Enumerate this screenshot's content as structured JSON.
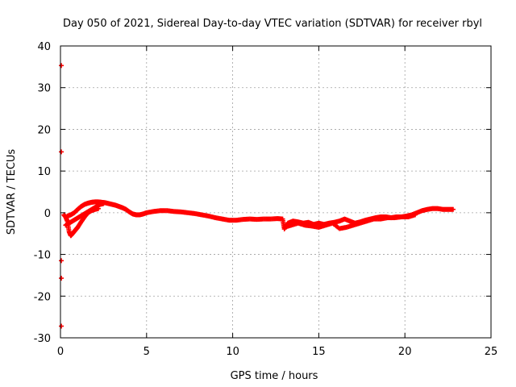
{
  "chart_data": {
    "type": "scatter",
    "title": "Day 050 of 2021, Sidereal Day-to-day VTEC variation (SDTVAR) for receiver rbyl",
    "xlabel": "GPS time / hours",
    "ylabel": "SDTVAR / TECUs",
    "xlim": [
      0,
      25
    ],
    "ylim": [
      -30,
      40
    ],
    "x_ticks": [
      0,
      5,
      10,
      15,
      20,
      25
    ],
    "y_ticks": [
      -30,
      -20,
      -10,
      0,
      10,
      20,
      30,
      40
    ],
    "x_tick_labels": [
      "0",
      "5",
      "10",
      "15",
      "20",
      "25"
    ],
    "y_tick_labels": [
      "-30",
      "-20",
      "-10",
      "0",
      "10",
      "20",
      "30",
      "40"
    ],
    "grid": true,
    "marker": "plus",
    "color": "#ff0000",
    "series": [
      {
        "name": "rbyl",
        "x": [
          0.05,
          0.05,
          0.05,
          0.05,
          0.05,
          0.2,
          0.3,
          0.4,
          0.5,
          0.6,
          0.7,
          0.8,
          0.9,
          1.0,
          1.2,
          1.4,
          1.6,
          1.8,
          2.0,
          2.2,
          0.3,
          0.5,
          0.7,
          0.9,
          1.1,
          1.3,
          1.5,
          1.7,
          1.9,
          2.1,
          2.3,
          2.5,
          0.4,
          0.6,
          0.8,
          1.0,
          1.2,
          1.4,
          1.6,
          1.8,
          2.0,
          2.2,
          2.4,
          2.6,
          2.8,
          3.0,
          3.2,
          3.4,
          3.6,
          3.8,
          4.0,
          4.2,
          4.4,
          4.6,
          4.8,
          5.0,
          5.4,
          5.8,
          6.2,
          6.6,
          7.0,
          7.4,
          7.8,
          8.2,
          8.6,
          9.0,
          9.4,
          9.8,
          10.2,
          10.6,
          11.0,
          11.4,
          11.8,
          12.2,
          12.6,
          12.9,
          13.0,
          13.2,
          13.5,
          13.8,
          14.1,
          14.4,
          14.7,
          15.0,
          15.3,
          15.6,
          15.9,
          16.2,
          16.5,
          16.8,
          17.1,
          17.4,
          17.7,
          18.0,
          18.3,
          18.6,
          18.9,
          19.2,
          19.5,
          19.8,
          20.1,
          20.4,
          20.7,
          21.0,
          21.3,
          21.6,
          21.9,
          22.2,
          22.5,
          22.8,
          13.0,
          13.4,
          13.8,
          14.2,
          14.6,
          15.0,
          15.4,
          15.8,
          16.2,
          16.6,
          17.0,
          17.4,
          17.8,
          18.2,
          18.6,
          19.0,
          19.4,
          19.8,
          20.2,
          20.6
        ],
        "y": [
          35.3,
          14.6,
          -11.5,
          -15.7,
          -27.2,
          -0.5,
          -1.0,
          -2.0,
          -4.5,
          -5.5,
          -5.0,
          -4.5,
          -4.0,
          -3.5,
          -2.2,
          -1.0,
          0.0,
          0.5,
          0.8,
          1.0,
          -3.0,
          -2.5,
          -2.0,
          -1.5,
          -1.0,
          -0.5,
          0.0,
          0.5,
          1.0,
          1.5,
          2.0,
          2.2,
          -0.8,
          -0.5,
          0.0,
          0.8,
          1.5,
          2.0,
          2.3,
          2.5,
          2.6,
          2.6,
          2.5,
          2.4,
          2.2,
          2.0,
          1.8,
          1.5,
          1.2,
          0.8,
          0.2,
          -0.3,
          -0.5,
          -0.5,
          -0.3,
          0.0,
          0.3,
          0.5,
          0.5,
          0.3,
          0.2,
          0.0,
          -0.2,
          -0.5,
          -0.8,
          -1.2,
          -1.5,
          -1.8,
          -1.8,
          -1.6,
          -1.5,
          -1.6,
          -1.5,
          -1.5,
          -1.4,
          -1.5,
          -3.9,
          -2.5,
          -2.0,
          -2.2,
          -2.5,
          -2.3,
          -2.8,
          -2.5,
          -2.8,
          -2.5,
          -2.3,
          -2.0,
          -1.5,
          -2.0,
          -2.5,
          -2.2,
          -1.8,
          -1.5,
          -1.2,
          -1.0,
          -1.0,
          -1.2,
          -1.0,
          -1.0,
          -0.8,
          -0.5,
          0.0,
          0.5,
          0.8,
          1.0,
          1.0,
          0.8,
          0.8,
          0.8,
          -3.5,
          -3.0,
          -2.5,
          -3.0,
          -3.2,
          -3.5,
          -3.0,
          -2.5,
          -3.8,
          -3.5,
          -3.0,
          -2.5,
          -2.0,
          -1.5,
          -1.5,
          -1.2,
          -1.2,
          -1.0,
          -1.0,
          -0.5
        ]
      }
    ]
  }
}
